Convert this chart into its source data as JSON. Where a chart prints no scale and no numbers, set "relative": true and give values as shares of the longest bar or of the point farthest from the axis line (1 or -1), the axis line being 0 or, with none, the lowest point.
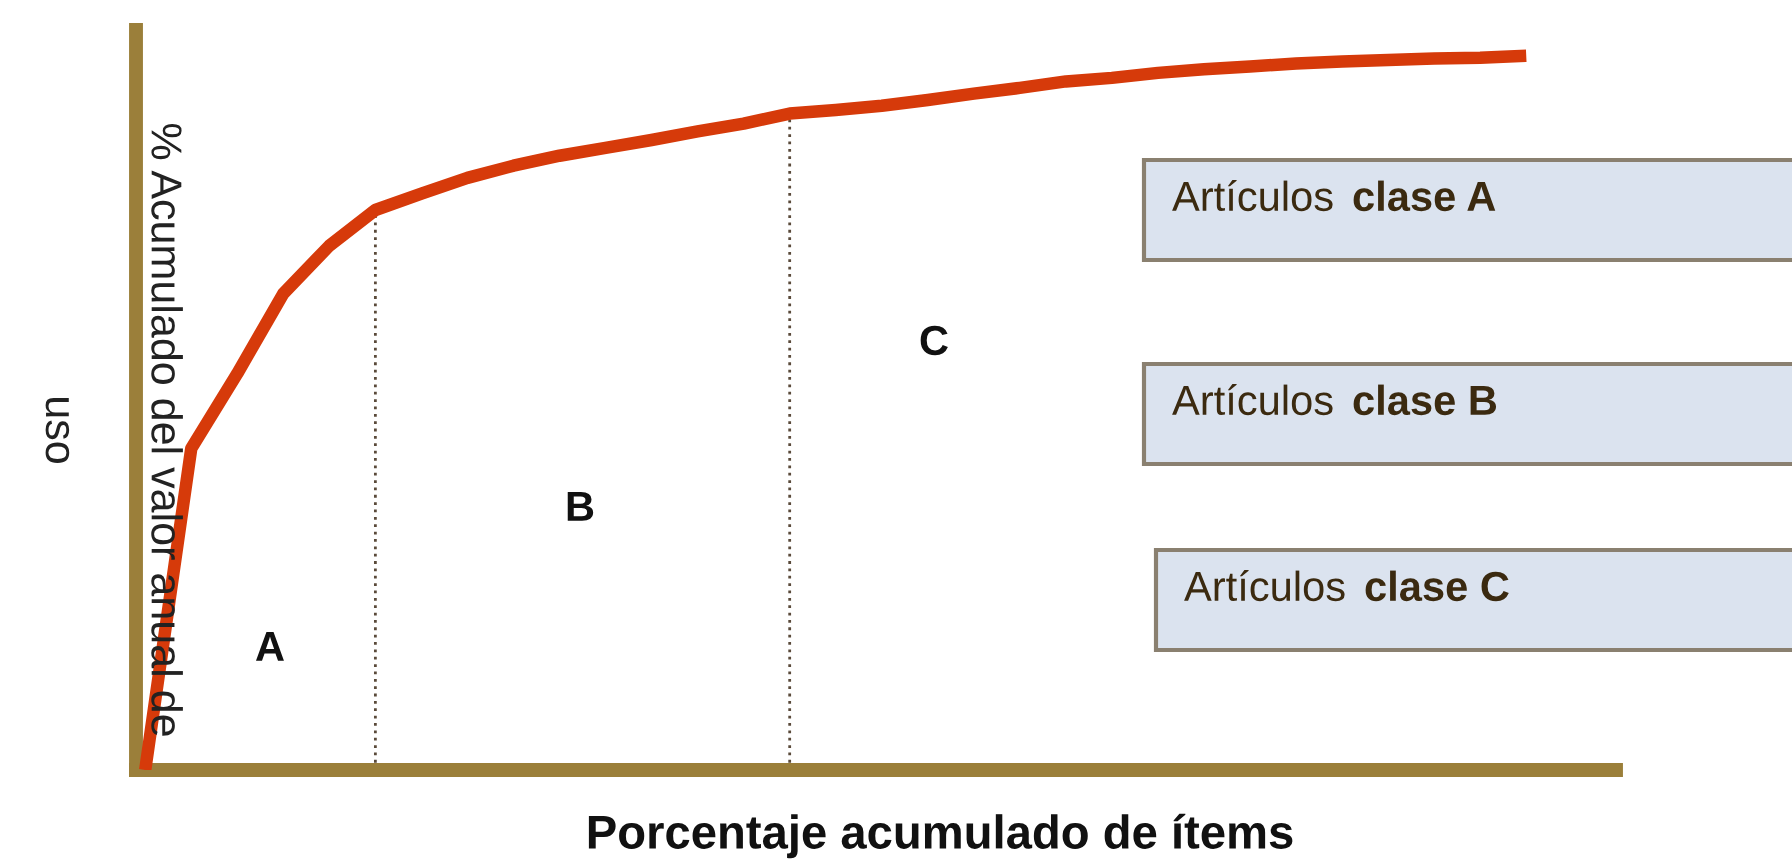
{
  "chart_data": {
    "type": "line",
    "xlabel": "Porcentaje acumulado de ítems",
    "ylabel": "% Acumulado del valor anual de uso",
    "categories": [
      null,
      null,
      null,
      null,
      null,
      null,
      null,
      null,
      null,
      null,
      null,
      null,
      null,
      null,
      null,
      null,
      null,
      null,
      null,
      null,
      null,
      null,
      null,
      null,
      null,
      null,
      null,
      null,
      null,
      null,
      null
    ],
    "series": [
      {
        "color": "#d63a0a",
        "values": [
          0,
          0.45,
          0.555,
          0.667,
          0.734,
          0.784,
          0.807,
          0.829,
          0.846,
          0.86,
          0.871,
          0.882,
          0.894,
          0.905,
          0.919,
          0.924,
          0.93,
          0.938,
          0.947,
          0.955,
          0.964,
          0.969,
          0.976,
          0.981,
          0.985,
          0.989,
          0.992,
          0.994,
          0.996,
          0.997,
          1
        ]
      }
    ],
    "relative": true,
    "annotations": [
      "A",
      "B",
      "C",
      "Artículos clase A",
      "Artículos clase B",
      "Artículos clase C"
    ]
  }
}
